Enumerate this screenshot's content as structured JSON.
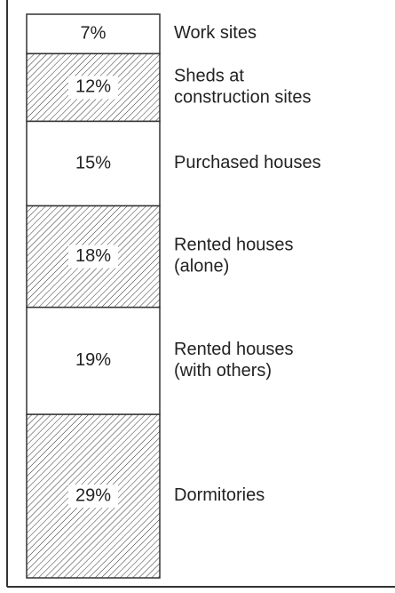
{
  "chart_data": {
    "type": "stacked_column",
    "categories": [
      "Work sites",
      "Sheds at\nconstruction sites",
      "Purchased houses",
      "Rented houses\n(alone)",
      "Rented houses\n(with others)",
      "Dormitories"
    ],
    "values": [
      7,
      12,
      15,
      18,
      19,
      29
    ],
    "value_labels": [
      "7%",
      "12%",
      "15%",
      "18%",
      "19%",
      "29%"
    ],
    "patterns": [
      "none",
      "hatch",
      "none",
      "hatch",
      "none",
      "hatch"
    ]
  }
}
